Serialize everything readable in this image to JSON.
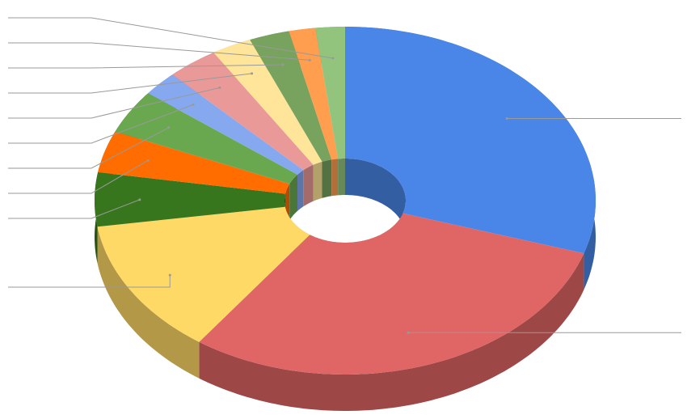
{
  "chart_data": {
    "type": "pie",
    "donut": true,
    "three_d": true,
    "values": [
      29.9,
      30.0,
      12.7,
      5.0,
      3.9,
      4.1,
      2.3,
      3.3,
      2.6,
      2.6,
      1.7,
      1.9
    ],
    "colors": [
      "#4a86e8",
      "#e06666",
      "#ffd966",
      "#38761d",
      "#ff6d01",
      "#6aa84f",
      "#86a8ee",
      "#ea9999",
      "#ffe599",
      "#77a35f",
      "#ff9e4f",
      "#93c47d"
    ]
  }
}
